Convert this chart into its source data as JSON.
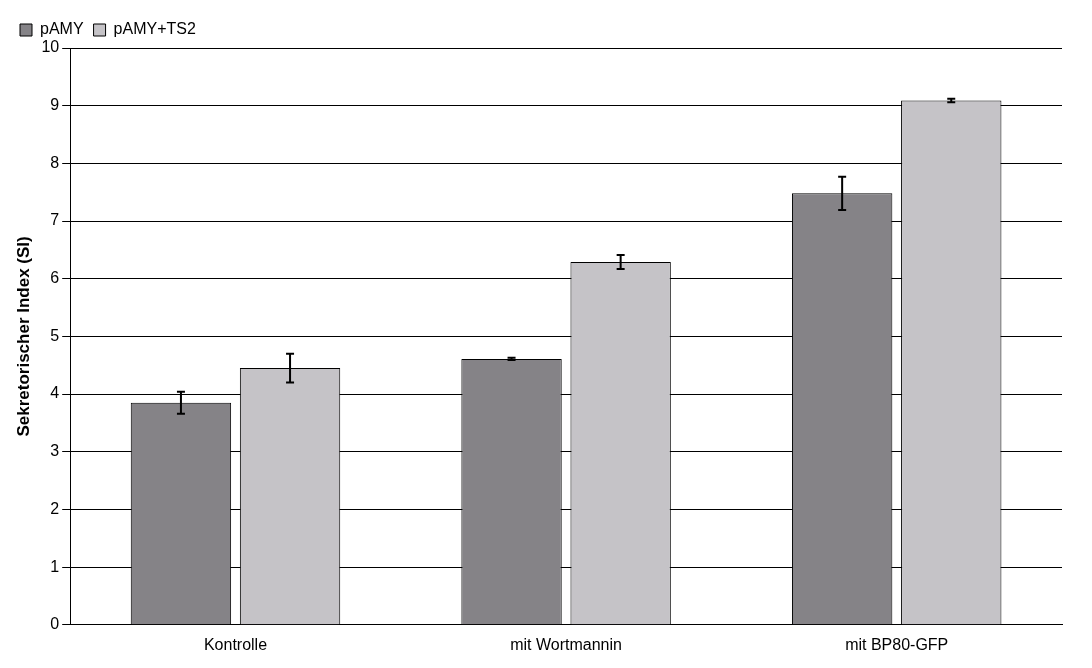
{
  "chart_data": {
    "type": "bar",
    "ylabel": "Sekretorischer Index (SI)",
    "categories": [
      "Kontrolle",
      "mit Wortmannin",
      "mit BP80-GFP"
    ],
    "series": [
      {
        "name": "pAMY",
        "color": "#858387",
        "values": [
          3.85,
          4.61,
          7.48
        ],
        "errors": [
          0.19,
          0.02,
          0.29
        ]
      },
      {
        "name": "pAMY+TS2",
        "color": "#c5c3c7",
        "values": [
          4.45,
          6.29,
          9.09
        ],
        "errors": [
          0.25,
          0.12,
          0.03
        ]
      }
    ],
    "ylim": [
      0,
      10
    ],
    "yticks": [
      0,
      1,
      2,
      3,
      4,
      5,
      6,
      7,
      8,
      9,
      10
    ],
    "grid": "y",
    "legend": "top left"
  }
}
